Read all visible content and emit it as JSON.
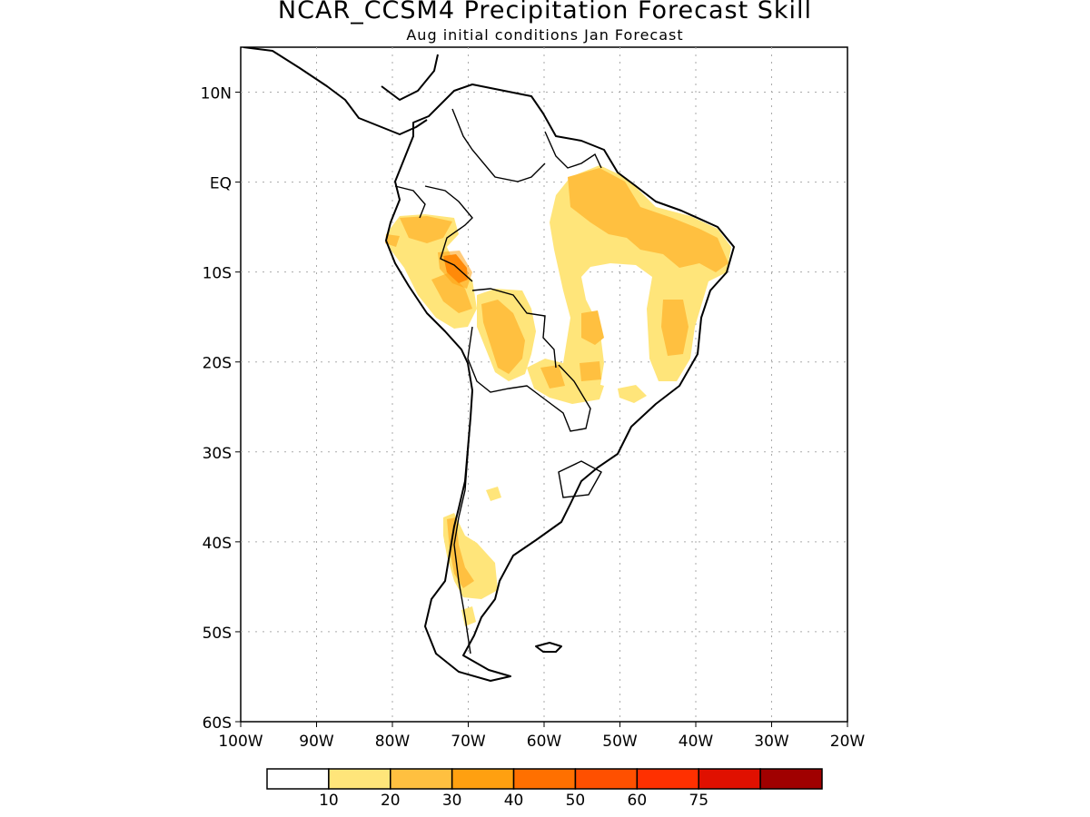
{
  "header": {
    "title": "NCAR_CCSM4 Precipitation Forecast Skill",
    "subtitle": "Aug initial conditions  Jan Forecast"
  },
  "map": {
    "lon_range": [
      -100,
      -20
    ],
    "lat_range": [
      -60,
      15
    ],
    "lat_ticks": [
      {
        "value": 10,
        "label": "10N"
      },
      {
        "value": 0,
        "label": "EQ"
      },
      {
        "value": -10,
        "label": "10S"
      },
      {
        "value": -20,
        "label": "20S"
      },
      {
        "value": -30,
        "label": "30S"
      },
      {
        "value": -40,
        "label": "40S"
      },
      {
        "value": -50,
        "label": "50S"
      },
      {
        "value": -60,
        "label": "60S"
      }
    ],
    "lon_ticks": [
      {
        "value": -100,
        "label": "100W"
      },
      {
        "value": -90,
        "label": "90W"
      },
      {
        "value": -80,
        "label": "80W"
      },
      {
        "value": -70,
        "label": "70W"
      },
      {
        "value": -60,
        "label": "60W"
      },
      {
        "value": -50,
        "label": "50W"
      },
      {
        "value": -40,
        "label": "40W"
      },
      {
        "value": -30,
        "label": "30W"
      },
      {
        "value": -20,
        "label": "20W"
      }
    ],
    "grid": "dotted"
  },
  "colorbar": {
    "colors": [
      "#ffffff",
      "#ffe57a",
      "#ffc040",
      "#ffa010",
      "#ff7000",
      "#ff5000",
      "#ff3000",
      "#e01000",
      "#a00000"
    ],
    "labels": [
      "10",
      "20",
      "30",
      "40",
      "50",
      "60",
      "75"
    ]
  }
}
